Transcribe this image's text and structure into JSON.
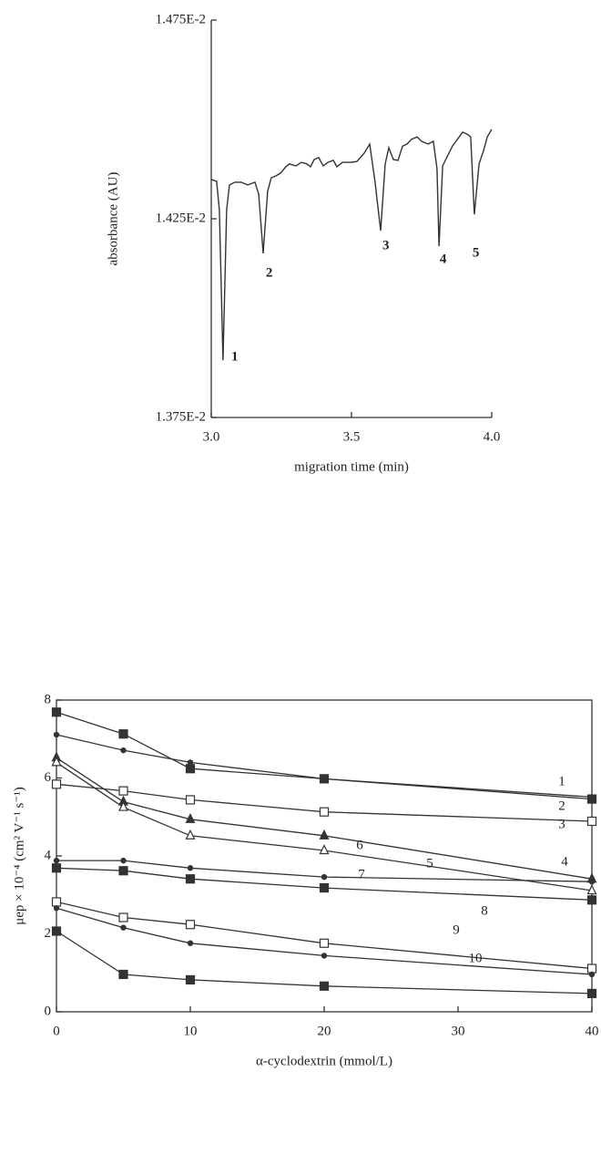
{
  "chart_data": [
    {
      "type": "line",
      "xlabel": "migration time (min)",
      "ylabel": "absorbance (AU)",
      "x": [
        3.0,
        3.019,
        3.029,
        3.042,
        3.055,
        3.065,
        3.084,
        3.107,
        3.13,
        3.156,
        3.169,
        3.185,
        3.201,
        3.214,
        3.231,
        3.247,
        3.266,
        3.279,
        3.302,
        3.321,
        3.341,
        3.354,
        3.367,
        3.383,
        3.399,
        3.416,
        3.435,
        3.448,
        3.468,
        3.497,
        3.519,
        3.545,
        3.565,
        3.584,
        3.604,
        3.62,
        3.633,
        3.649,
        3.666,
        3.682,
        3.698,
        3.714,
        3.734,
        3.75,
        3.773,
        3.792,
        3.805,
        3.812,
        3.825,
        3.841,
        3.86,
        3.88,
        3.896,
        3.912,
        3.925,
        3.938,
        3.955,
        3.971,
        3.984,
        4.0
      ],
      "values": [
        0.014349,
        0.014344,
        0.014273,
        0.013894,
        0.014273,
        0.014335,
        0.014342,
        0.014342,
        0.014335,
        0.014342,
        0.014312,
        0.014163,
        0.014319,
        0.014353,
        0.014358,
        0.014365,
        0.014381,
        0.014388,
        0.014383,
        0.014392,
        0.014388,
        0.014381,
        0.014399,
        0.014404,
        0.014383,
        0.014392,
        0.014397,
        0.014381,
        0.014392,
        0.014392,
        0.014394,
        0.014415,
        0.014438,
        0.014342,
        0.01422,
        0.014388,
        0.014429,
        0.014399,
        0.014397,
        0.014433,
        0.014438,
        0.01445,
        0.014456,
        0.014445,
        0.014438,
        0.014445,
        0.014376,
        0.014181,
        0.014383,
        0.014406,
        0.014433,
        0.014452,
        0.014468,
        0.014463,
        0.014456,
        0.014261,
        0.014388,
        0.014422,
        0.014456,
        0.014475
      ],
      "color": "#333333",
      "xlim": [
        3.0,
        4.0
      ],
      "ylim": [
        0.01375,
        0.01475
      ],
      "xticks": [
        {
          "value": 3,
          "label": "3.0"
        },
        3.5,
        {
          "value": 4,
          "label": "4.0"
        }
      ],
      "yticks": [
        {
          "value": 0.01375,
          "label": "1.375E-2"
        },
        {
          "value": 0.01425,
          "label": "1.425E-2"
        },
        {
          "value": 0.01475,
          "label": "1.475E-2"
        }
      ],
      "annotations": [
        {
          "text": "1",
          "x": 3.065,
          "y": 0.013901
        },
        {
          "text": "2",
          "x": 3.188,
          "y": 0.014112
        },
        {
          "text": "3",
          "x": 3.604,
          "y": 0.014181
        },
        {
          "text": "4",
          "x": 3.808,
          "y": 0.014147
        },
        {
          "text": "5",
          "x": 3.925,
          "y": 0.014163
        }
      ]
    },
    {
      "type": "line",
      "xlabel": "α-cyclodextrin (mmol/L)",
      "ylabel": "μep × 10⁻⁴ (cm² V⁻¹ s⁻¹)",
      "x": [
        0,
        5,
        10,
        20,
        40
      ],
      "xlim": [
        0,
        40
      ],
      "ylim": [
        0,
        8
      ],
      "xticks": [
        0,
        10,
        20,
        30,
        40
      ],
      "yticks": [
        0,
        2,
        4,
        6,
        8
      ],
      "series": [
        {
          "name": "1",
          "color": "#333333",
          "marker": "filled-square",
          "values": [
            7.69,
            7.13,
            6.24,
            5.98,
            5.46
          ]
        },
        {
          "name": "2",
          "color": "#333333",
          "marker": "dot",
          "values": [
            7.11,
            6.71,
            6.4,
            5.98,
            5.51
          ]
        },
        {
          "name": "3",
          "color": "#333333",
          "marker": "open-square",
          "values": [
            5.84,
            5.67,
            5.44,
            5.13,
            4.89
          ]
        },
        {
          "name": "4",
          "color": "#333333",
          "marker": "filled-triangle",
          "values": [
            6.52,
            5.39,
            4.94,
            4.52,
            3.41
          ]
        },
        {
          "name": "5",
          "color": "#333333",
          "marker": "open-triangle",
          "values": [
            6.4,
            5.25,
            4.52,
            4.14,
            3.11
          ]
        },
        {
          "name": "6",
          "color": "#333333",
          "marker": "dot",
          "values": [
            3.88,
            3.88,
            3.69,
            3.46,
            3.34
          ]
        },
        {
          "name": "7",
          "color": "#333333",
          "marker": "filled-square",
          "values": [
            3.69,
            3.62,
            3.41,
            3.18,
            2.87
          ]
        },
        {
          "name": "8",
          "color": "#333333",
          "marker": "open-square",
          "values": [
            2.82,
            2.42,
            2.24,
            1.76,
            1.11
          ]
        },
        {
          "name": "9",
          "color": "#333333",
          "marker": "dot",
          "values": [
            2.66,
            2.16,
            1.76,
            1.44,
            0.96
          ]
        },
        {
          "name": "10",
          "color": "#333333",
          "marker": "filled-square",
          "values": [
            2.07,
            0.96,
            0.82,
            0.66,
            0.47
          ]
        }
      ]
    }
  ]
}
